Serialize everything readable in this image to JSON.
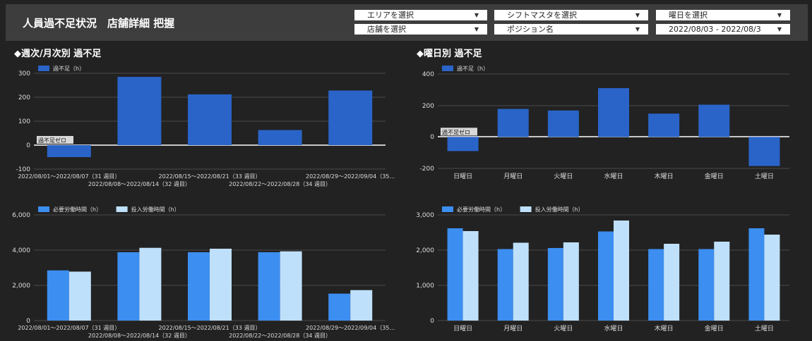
{
  "header": {
    "title": "人員過不足状況　店舗詳細 把握",
    "filters": {
      "area": "エリアを選択",
      "shift": "シフトマスタを選択",
      "weekday": "曜日を選択",
      "store": "店舗を選択",
      "position": "ポジション名",
      "daterange": "2022/08/03 - 2022/08/3"
    }
  },
  "sections": {
    "weekly_title": "◆週次/月次別 過不足",
    "dow_title": "◆曜日別 過不足"
  },
  "colors": {
    "required": "#3c8ef0",
    "input": "#bfe0fb",
    "shortage": "#2a64c8",
    "grid": "#4a4a4a"
  },
  "chart_data": [
    {
      "type": "bar",
      "legend": [
        "過不足（h）"
      ],
      "categories": [
        "2022/08/01～2022/08/07（31 週目）",
        "2022/08/08～2022/08/14（32 週目）",
        "2022/08/15～2022/08/21（33 週目）",
        "2022/08/22～2022/08/28（34 週目）",
        "2022/08/29～2022/09/04（35…"
      ],
      "series": [
        {
          "name": "過不足（h）",
          "values": [
            -50,
            285,
            212,
            63,
            228
          ]
        }
      ],
      "yticks": [
        "300",
        "200",
        "100",
        "0",
        "-100"
      ],
      "ylim": [
        -100,
        300
      ],
      "zero_label": "過不足ゼロ"
    },
    {
      "type": "bar",
      "legend": [
        "過不足（h）"
      ],
      "categories": [
        "日曜日",
        "月曜日",
        "火曜日",
        "水曜日",
        "木曜日",
        "金曜日",
        "土曜日"
      ],
      "series": [
        {
          "name": "過不足（h）",
          "values": [
            -90,
            178,
            168,
            310,
            148,
            205,
            -185
          ]
        }
      ],
      "yticks": [
        "400",
        "200",
        "0",
        "-200"
      ],
      "ylim": [
        -200,
        400
      ],
      "zero_label": "過不足ゼロ"
    },
    {
      "type": "bar",
      "legend": [
        "必要労働時間（h）",
        "投入労働時間（h）"
      ],
      "categories": [
        "2022/08/01～2022/08/07（31 週目）",
        "2022/08/08～2022/08/14（32 週目）",
        "2022/08/15～2022/08/21（33 週目）",
        "2022/08/22～2022/08/28（34 週目）",
        "2022/08/29～2022/09/04（35…"
      ],
      "series": [
        {
          "name": "必要労働時間（h）",
          "values": [
            2850,
            3880,
            3880,
            3880,
            1530
          ]
        },
        {
          "name": "投入労働時間（h）",
          "values": [
            2780,
            4130,
            4080,
            3930,
            1730
          ]
        }
      ],
      "yticks": [
        "6,000",
        "4,000",
        "2,000",
        "0"
      ],
      "ylim": [
        0,
        6000
      ]
    },
    {
      "type": "bar",
      "legend": [
        "必要労働時間（h）",
        "投入労働時間（h）"
      ],
      "categories": [
        "日曜日",
        "月曜日",
        "火曜日",
        "水曜日",
        "木曜日",
        "金曜日",
        "土曜日"
      ],
      "series": [
        {
          "name": "必要労働時間（h）",
          "values": [
            2620,
            2030,
            2060,
            2530,
            2030,
            2030,
            2620
          ]
        },
        {
          "name": "投入労働時間（h）",
          "values": [
            2540,
            2210,
            2220,
            2840,
            2180,
            2240,
            2440
          ]
        }
      ],
      "yticks": [
        "3,000",
        "2,000",
        "1,000",
        "0"
      ],
      "ylim": [
        0,
        3000
      ]
    }
  ]
}
